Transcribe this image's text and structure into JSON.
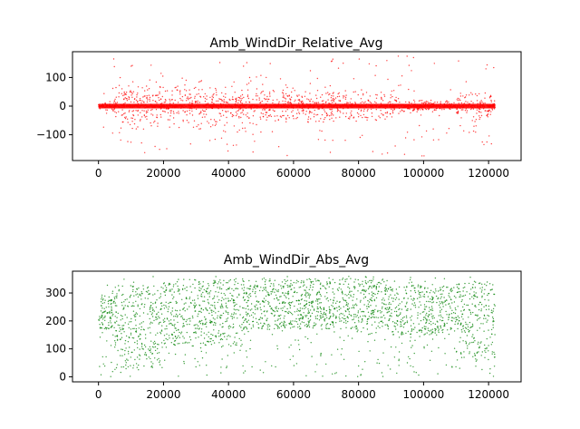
{
  "chart_data": [
    {
      "type": "scatter",
      "title": "Amb_WindDir_Relative_Avg",
      "xlabel": "",
      "ylabel": "",
      "xlim": [
        -8000,
        130000
      ],
      "ylim": [
        -190,
        190
      ],
      "xticks": [
        0,
        20000,
        40000,
        60000,
        80000,
        100000,
        120000
      ],
      "yticks": [
        -100,
        0,
        100
      ],
      "xtick_labels": [
        "0",
        "20000",
        "40000",
        "60000",
        "80000",
        "100000",
        "120000"
      ],
      "ytick_labels": [
        "−100",
        "0",
        "100"
      ],
      "color": "#ff0000",
      "marker": "small dots",
      "x_extent": [
        0,
        122000
      ],
      "summary": {
        "dense_band_center": 0,
        "dense_band_halfwidth": 8,
        "value_range": [
          -180,
          180
        ],
        "spread_by_x_segment": [
          {
            "x": [
              0,
              5000
            ],
            "typical_halfwidth": 25
          },
          {
            "x": [
              5000,
              48000
            ],
            "typical_halfwidth": 85
          },
          {
            "x": [
              48000,
              93000
            ],
            "typical_halfwidth": 65
          },
          {
            "x": [
              93000,
              110000
            ],
            "typical_halfwidth": 22
          },
          {
            "x": [
              110000,
              122000
            ],
            "typical_halfwidth": 50
          }
        ]
      }
    },
    {
      "type": "scatter",
      "title": "Amb_WindDir_Abs_Avg",
      "xlabel": "",
      "ylabel": "",
      "xlim": [
        -8000,
        130000
      ],
      "ylim": [
        -18,
        378
      ],
      "xticks": [
        0,
        20000,
        40000,
        60000,
        80000,
        100000,
        120000
      ],
      "yticks": [
        0,
        100,
        200,
        300
      ],
      "xtick_labels": [
        "0",
        "20000",
        "40000",
        "60000",
        "80000",
        "100000",
        "120000"
      ],
      "ytick_labels": [
        "0",
        "100",
        "200",
        "300"
      ],
      "color": "#008000",
      "marker": "small dots",
      "x_extent": [
        0,
        122000
      ],
      "summary": {
        "value_range": [
          0,
          360
        ],
        "dense_band_by_x_segment": [
          {
            "x": [
              0,
              5000
            ],
            "center": 230,
            "halfwidth": 60
          },
          {
            "x": [
              5000,
              20000
            ],
            "center": 180,
            "halfwidth": 150
          },
          {
            "x": [
              20000,
              45000
            ],
            "center": 230,
            "halfwidth": 120
          },
          {
            "x": [
              45000,
              90000
            ],
            "center": 260,
            "halfwidth": 90
          },
          {
            "x": [
              90000,
              110000
            ],
            "center": 240,
            "halfwidth": 90
          },
          {
            "x": [
              110000,
              122000
            ],
            "center": 200,
            "halfwidth": 140
          }
        ]
      }
    }
  ]
}
